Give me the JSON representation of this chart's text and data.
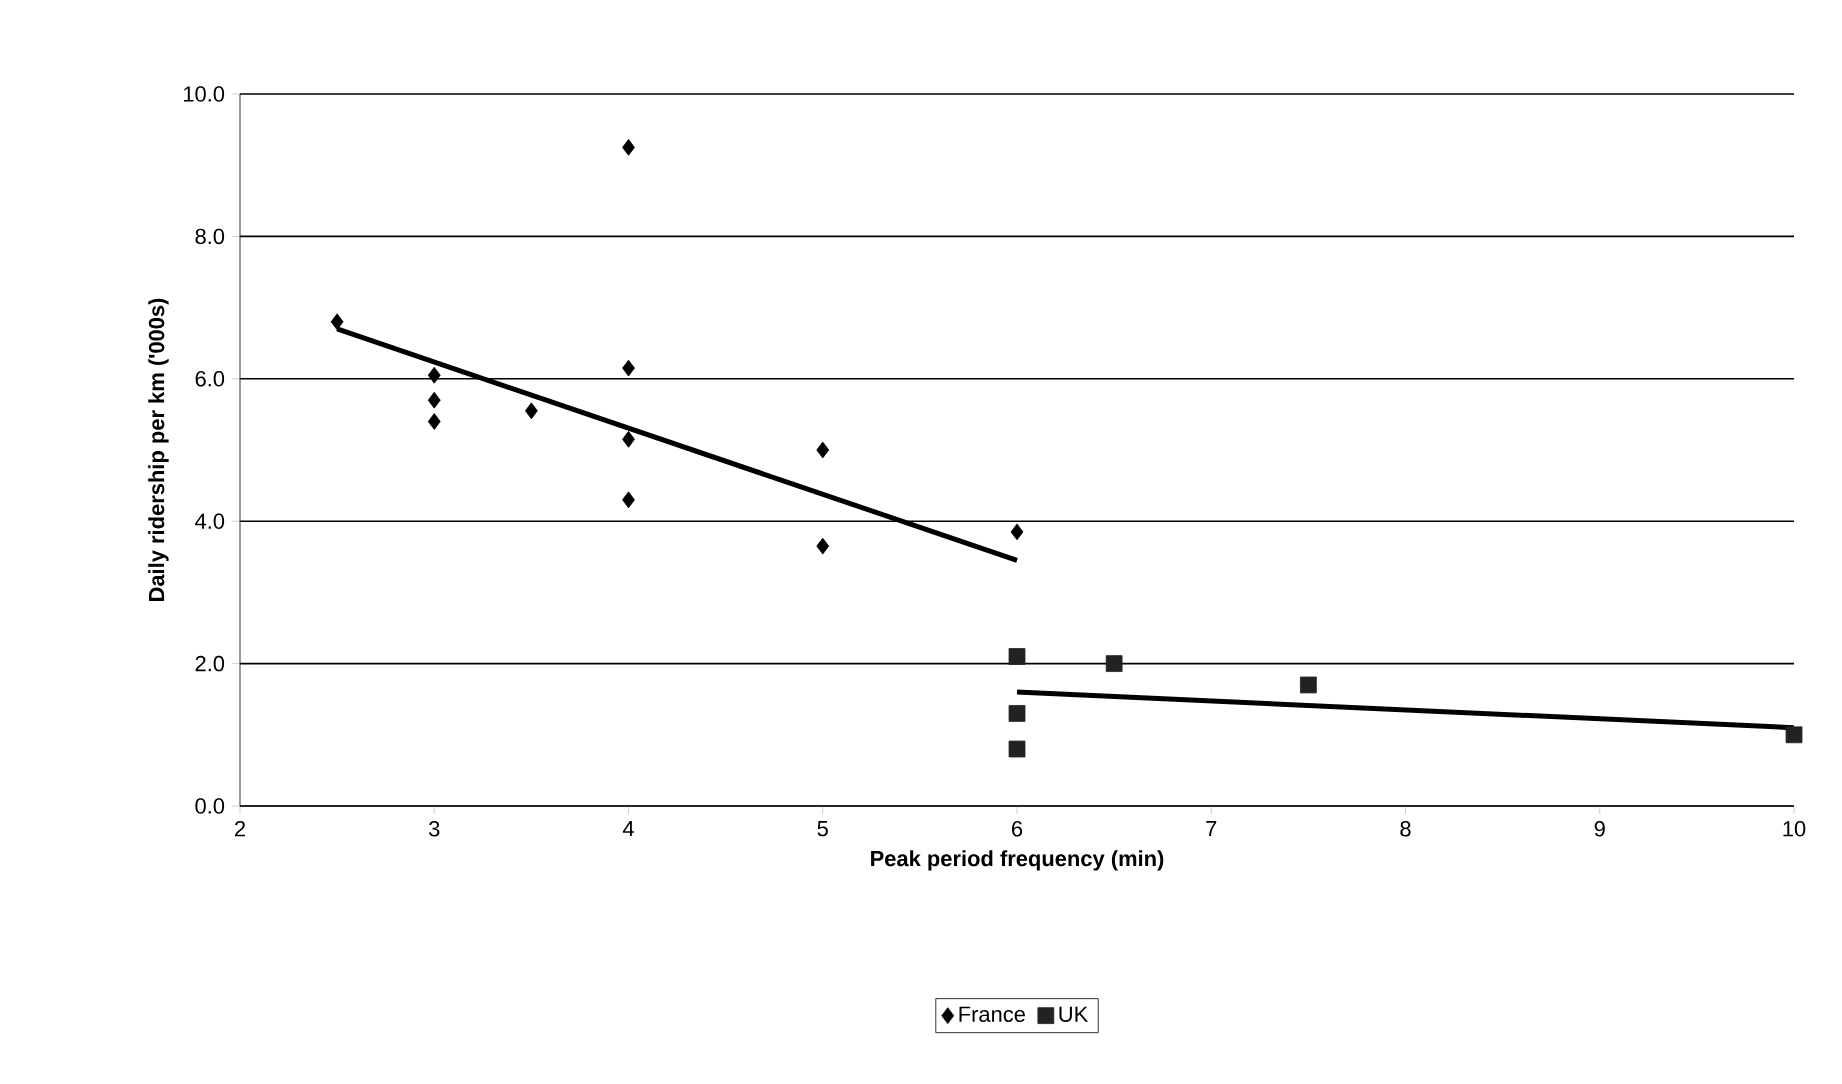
{
  "chart_data": {
    "type": "scatter",
    "xlabel": "Peak period frequency (min)",
    "ylabel": "Daily ridership per km ('000s)",
    "xlim": [
      2,
      10
    ],
    "xticks": [
      2,
      3,
      4,
      5,
      6,
      7,
      8,
      9,
      10
    ],
    "ylim": [
      0,
      10
    ],
    "yticks": [
      {
        "value": 0,
        "label": "0.0"
      },
      {
        "value": 2,
        "label": "2.0"
      },
      {
        "value": 4,
        "label": "4.0"
      },
      {
        "value": 6,
        "label": "6.0"
      },
      {
        "value": 8,
        "label": "8.0"
      },
      {
        "value": 10,
        "label": "10.0"
      }
    ],
    "grid": "y",
    "legend": "bottom",
    "series": [
      {
        "name": "France",
        "color": "#000000",
        "marker": "diamond",
        "x": [
          2.5,
          3,
          3,
          3,
          3.5,
          4,
          4,
          4,
          4,
          5,
          5,
          6
        ],
        "values": [
          6.8,
          6.05,
          5.7,
          5.4,
          5.55,
          9.25,
          6.15,
          5.15,
          4.3,
          5.0,
          3.65,
          3.85
        ]
      },
      {
        "name": "UK",
        "color": "#222222",
        "marker": "square",
        "x": [
          6,
          6,
          6,
          6.5,
          7.5,
          10
        ],
        "values": [
          2.1,
          1.3,
          0.8,
          2.0,
          1.7,
          1.0
        ]
      },
      {
        "type": "line",
        "color": "#000000",
        "marker": "none",
        "x": [
          2.5,
          6
        ],
        "values": [
          6.7,
          3.45
        ]
      },
      {
        "type": "line",
        "color": "#000000",
        "marker": "none",
        "x": [
          6,
          10
        ],
        "values": [
          1.6,
          1.1
        ]
      }
    ]
  }
}
